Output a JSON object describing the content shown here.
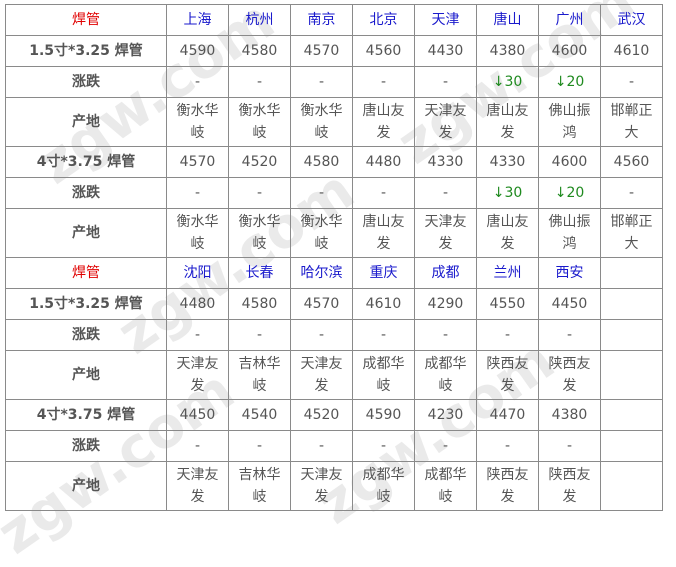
{
  "watermark": "zgw.com",
  "sections": [
    {
      "title": "焊管",
      "cities": [
        "上海",
        "杭州",
        "南京",
        "北京",
        "天津",
        "唐山",
        "广州",
        "武汉"
      ],
      "groups": [
        {
          "product": "1.5寸*3.25 焊管",
          "prices": [
            "4590",
            "4580",
            "4570",
            "4560",
            "4430",
            "4380",
            "4600",
            "4610"
          ],
          "change_label": "涨跌",
          "changes": [
            "-",
            "-",
            "-",
            "-",
            "-",
            "↓30",
            "↓20",
            "-"
          ],
          "origin_label": "产地",
          "origins": [
            "衡水华岐",
            "衡水华岐",
            "衡水华岐",
            "唐山友发",
            "天津友发",
            "唐山友发",
            "佛山振鸿",
            "邯郸正大"
          ]
        },
        {
          "product": "4寸*3.75 焊管",
          "prices": [
            "4570",
            "4520",
            "4580",
            "4480",
            "4330",
            "4330",
            "4600",
            "4560"
          ],
          "change_label": "涨跌",
          "changes": [
            "-",
            "-",
            "-",
            "-",
            "-",
            "↓30",
            "↓20",
            "-"
          ],
          "origin_label": "产地",
          "origins": [
            "衡水华岐",
            "衡水华岐",
            "衡水华岐",
            "唐山友发",
            "天津友发",
            "唐山友发",
            "佛山振鸿",
            "邯郸正大"
          ]
        }
      ]
    },
    {
      "title": "焊管",
      "cities": [
        "沈阳",
        "长春",
        "哈尔滨",
        "重庆",
        "成都",
        "兰州",
        "西安",
        ""
      ],
      "groups": [
        {
          "product": "1.5寸*3.25 焊管",
          "prices": [
            "4480",
            "4580",
            "4570",
            "4610",
            "4290",
            "4550",
            "4450",
            ""
          ],
          "change_label": "涨跌",
          "changes": [
            "-",
            "-",
            "-",
            "-",
            "-",
            "-",
            "-",
            ""
          ],
          "origin_label": "产地",
          "origins": [
            "天津友发",
            "吉林华岐",
            "天津友发",
            "成都华岐",
            "成都华岐",
            "陕西友发",
            "陕西友发",
            ""
          ]
        },
        {
          "product": "4寸*3.75 焊管",
          "prices": [
            "4450",
            "4540",
            "4520",
            "4590",
            "4230",
            "4470",
            "4380",
            ""
          ],
          "change_label": "涨跌",
          "changes": [
            "-",
            "-",
            "-",
            "-",
            "-",
            "-",
            "-",
            ""
          ],
          "origin_label": "产地",
          "origins": [
            "天津友发",
            "吉林华岐",
            "天津友发",
            "成都华岐",
            "成都华岐",
            "陕西友发",
            "陕西友发",
            ""
          ]
        }
      ]
    }
  ]
}
